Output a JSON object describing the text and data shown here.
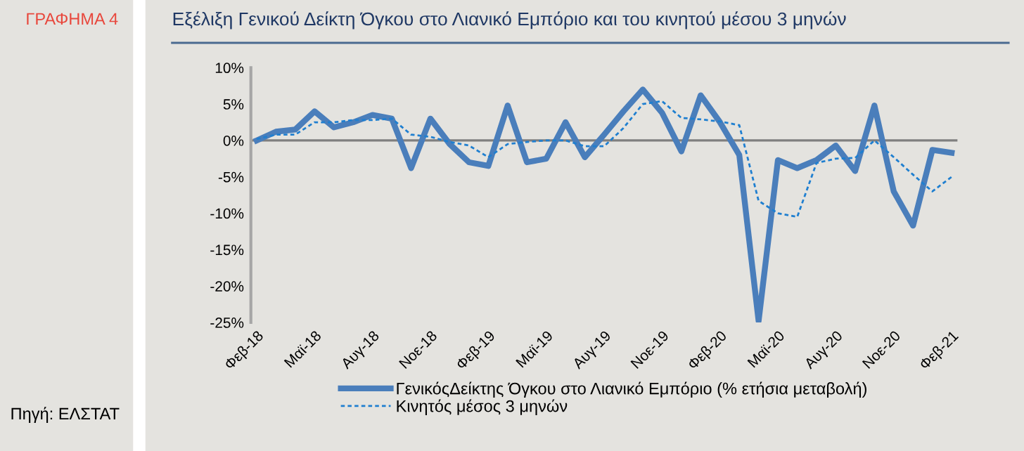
{
  "chart_data": {
    "type": "line",
    "title": "Εξέλιξη Γενικού Δείκτη Όγκου στο Λιανικό Εμπόριο και του κινητού μέσου 3 μηνών",
    "annotations": [
      "ΓΡΑΦΗΜΑ 4",
      "Πηγή: ΕΛΣΤΑΤ"
    ],
    "categories": [
      "Φεβ-18",
      null,
      null,
      "Μαϊ-18",
      null,
      null,
      "Αυγ-18",
      null,
      null,
      "Νοε-18",
      null,
      null,
      "Φεβ-19",
      null,
      null,
      "Μαϊ-19",
      null,
      null,
      "Αυγ-19",
      null,
      null,
      "Νοε-19",
      null,
      null,
      "Φεβ-20",
      null,
      null,
      "Μαϊ-20",
      null,
      null,
      "Αυγ-20",
      null,
      null,
      "Νοε-20",
      null,
      null,
      "Φεβ-21"
    ],
    "series": [
      {
        "name": "ΓενικόςΔείκτης Όγκου στο Λιανικό Εμπόριο (% ετήσια μεταβολή)",
        "color": "#4a7ebb",
        "line_style": "solid",
        "values": [
          0,
          1.2,
          1.5,
          4.0,
          1.8,
          2.5,
          3.5,
          3.0,
          -3.8,
          3.0,
          -0.5,
          -3.0,
          -3.5,
          4.8,
          -3.0,
          -2.5,
          2.5,
          -2.3,
          0.8,
          4.0,
          7.0,
          3.8,
          -1.5,
          6.2,
          2.5,
          -2.0,
          -24.8,
          -2.7,
          -3.8,
          -2.7,
          -0.7,
          -4.2,
          4.8,
          -7.0,
          -11.7,
          -1.3,
          -1.7
        ]
      },
      {
        "name": "Κινητός μέσος 3 μηνών",
        "color": "#1f7fd0",
        "line_style": "dashed",
        "values": [
          0.2,
          0.8,
          0.8,
          2.5,
          2.5,
          2.8,
          2.8,
          3.0,
          0.8,
          0.5,
          -0.2,
          -0.7,
          -2.3,
          -0.5,
          -0.2,
          0,
          0,
          -0.8,
          -0.8,
          1.7,
          5.0,
          5.4,
          3.1,
          2.9,
          2.6,
          2.1,
          -8.3,
          -10.0,
          -10.5,
          -3.1,
          -2.5,
          -2.4,
          0,
          -2.3,
          -4.7,
          -7.0,
          -5.0
        ]
      }
    ],
    "ylim": [
      -25,
      10
    ],
    "yticks": [
      {
        "value": -25,
        "label": "-25%"
      },
      {
        "value": -20,
        "label": "-20%"
      },
      {
        "value": -15,
        "label": "-15%"
      },
      {
        "value": -10,
        "label": "-10%"
      },
      {
        "value": -5,
        "label": "-5%"
      },
      {
        "value": 0,
        "label": "0%"
      },
      {
        "value": 5,
        "label": "5%"
      },
      {
        "value": 10,
        "label": "10%"
      }
    ],
    "ref_lines": [
      {
        "axis": "y",
        "value": 0,
        "color": "#7f7f7f"
      }
    ],
    "legend": "bottom",
    "grid": false
  }
}
